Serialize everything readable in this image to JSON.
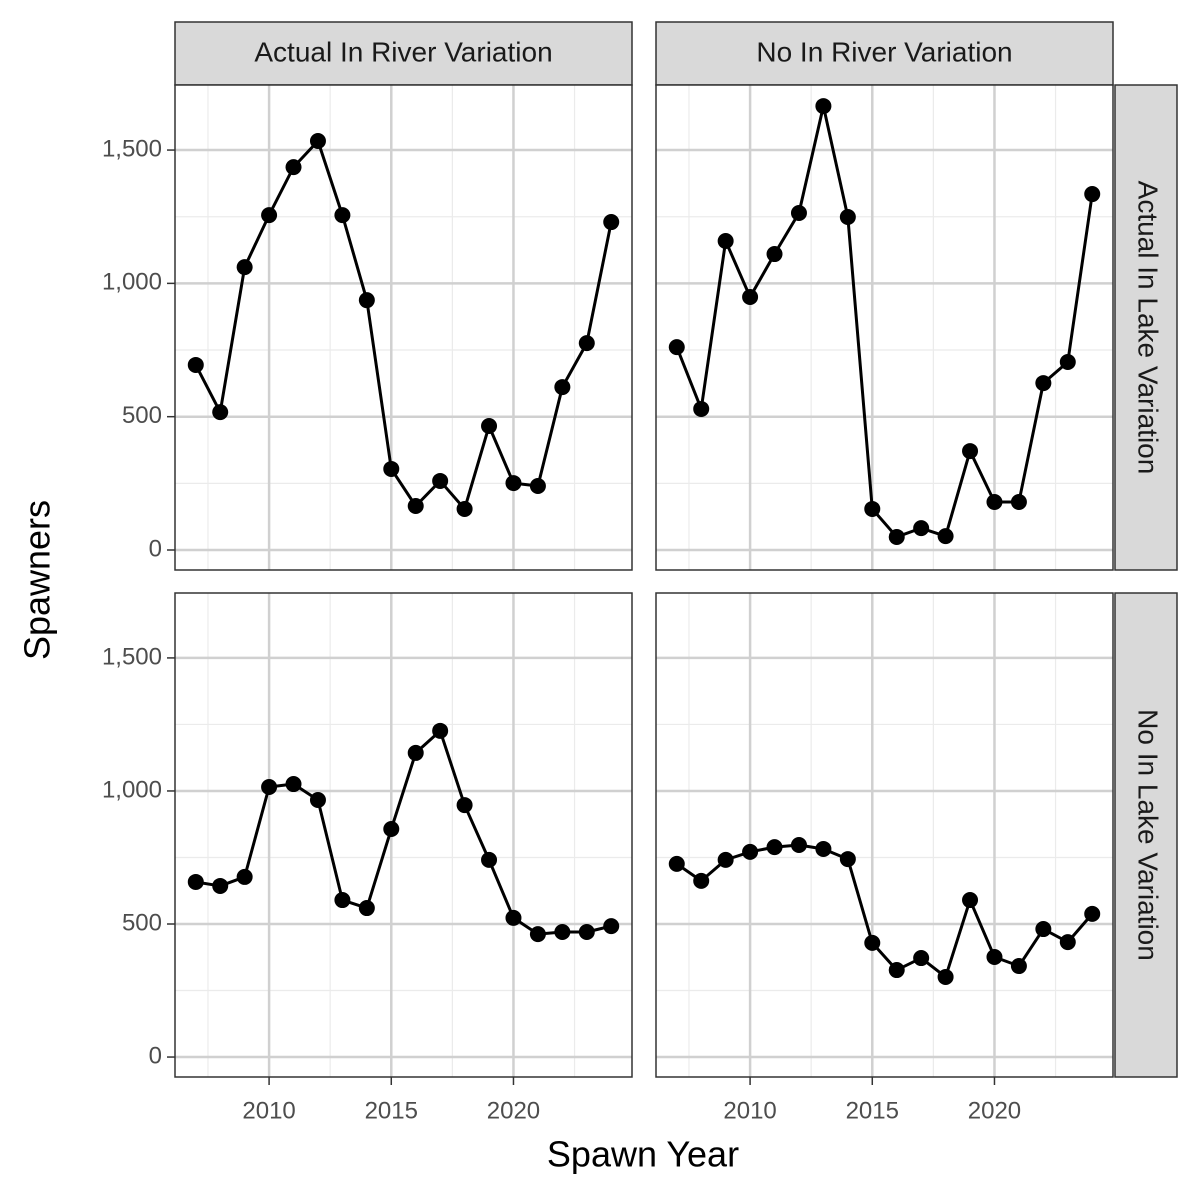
{
  "chart_data": {
    "type": "line",
    "x_label": "Spawn Year",
    "y_label": "Spawners",
    "columns": [
      "Actual In River Variation",
      "No In River Variation"
    ],
    "rows": [
      "Actual In Lake Variation",
      "No In Lake Variation"
    ],
    "x": [
      2007,
      2008,
      2009,
      2010,
      2011,
      2012,
      2013,
      2014,
      2015,
      2016,
      2017,
      2018,
      2019,
      2020,
      2021,
      2022,
      2023,
      2024
    ],
    "xlim": [
      2006.15,
      2024.85
    ],
    "xticks": [
      2010,
      2015,
      2020
    ],
    "ylim": [
      -75,
      1744
    ],
    "yticks": [
      0,
      500,
      {
        "value": 1000,
        "label": "1,000"
      },
      {
        "value": 1500,
        "label": "1,500"
      }
    ],
    "grid": true,
    "color": "#000000",
    "panels": [
      [
        [
          694,
          517,
          1061,
          1256,
          1436,
          1534,
          1256,
          937,
          304,
          165,
          259,
          154,
          465,
          251,
          240,
          611,
          776,
          1230
        ],
        [
          761,
          529,
          1159,
          949,
          1110,
          1264,
          1665,
          1249,
          154,
          49,
          82,
          52,
          371,
          180,
          180,
          626,
          705,
          1335
        ]
      ],
      [
        [
          658,
          643,
          677,
          1015,
          1026,
          966,
          590,
          560,
          857,
          1143,
          1226,
          947,
          741,
          523,
          462,
          470,
          470,
          492
        ],
        [
          726,
          662,
          741,
          771,
          789,
          797,
          782,
          744,
          429,
          327,
          372,
          301,
          590,
          376,
          342,
          481,
          432,
          538
        ]
      ]
    ]
  }
}
